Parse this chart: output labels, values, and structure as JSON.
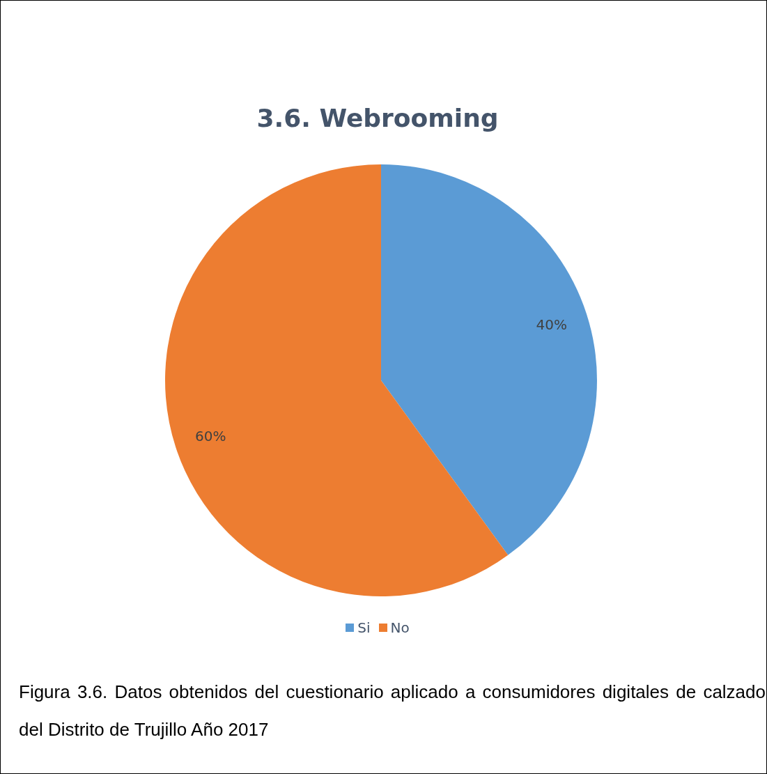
{
  "chart_data": {
    "type": "pie",
    "title": "3.6. Webrooming",
    "categories": [
      "Si",
      "No"
    ],
    "values": [
      40,
      60
    ],
    "colors": [
      "#5b9bd5",
      "#ed7d31"
    ],
    "value_labels": [
      "40%",
      "60%"
    ],
    "legend": "bottom",
    "annotations": [
      "Figura 3.6. Datos obtenidos del cuestionario aplicado a consumidores digitales de calzado del Distrito de Trujillo Año 2017"
    ]
  }
}
